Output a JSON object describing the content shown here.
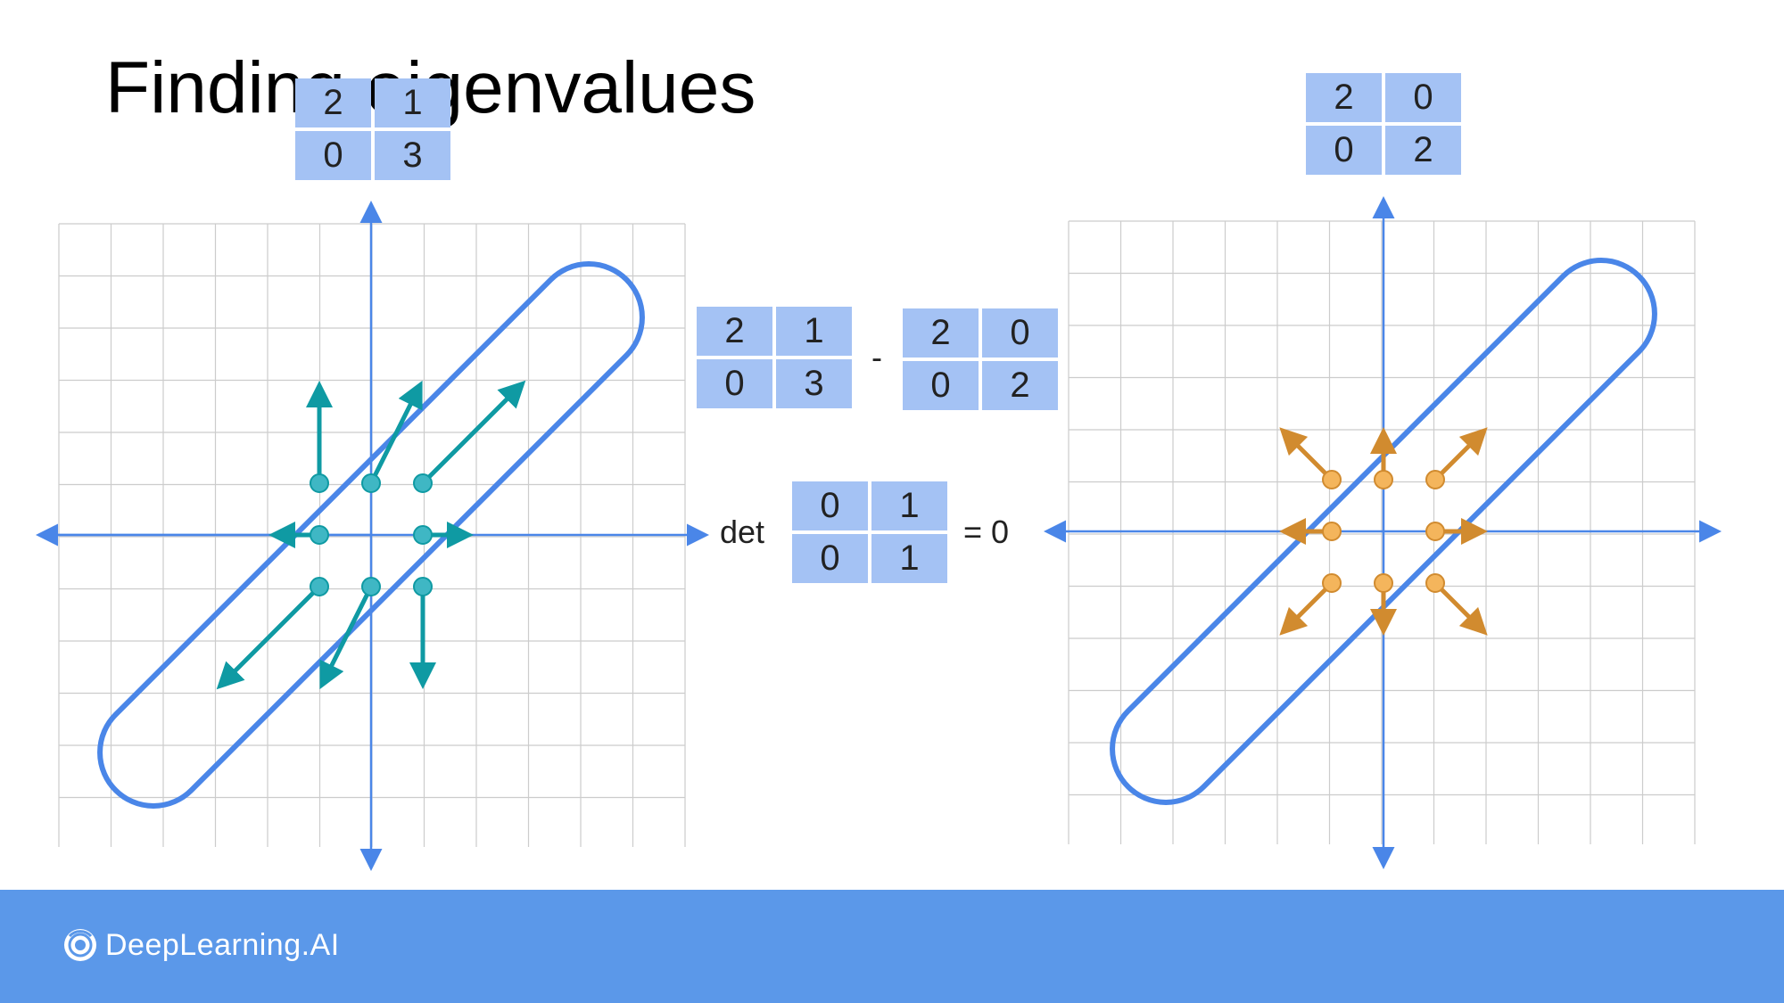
{
  "title": "Finding eigenvalues",
  "matrices": {
    "A_top": {
      "r1": [
        "2",
        "1"
      ],
      "r2": [
        "0",
        "3"
      ]
    },
    "D_top": {
      "r1": [
        "2",
        "0"
      ],
      "r2": [
        "0",
        "2"
      ]
    },
    "A_mid": {
      "r1": [
        "2",
        "1"
      ],
      "r2": [
        "0",
        "3"
      ]
    },
    "D_mid": {
      "r1": [
        "2",
        "0"
      ],
      "r2": [
        "0",
        "2"
      ]
    },
    "det_matrix": {
      "r1": [
        "0",
        "1"
      ],
      "r2": [
        "0",
        "1"
      ]
    }
  },
  "operators": {
    "minus": "-",
    "det": "det",
    "equals_zero": "= 0"
  },
  "colors": {
    "axis": "#4a86e8",
    "grid": "#cccccc",
    "teal": "#0f9aa3",
    "teal_dot": "#3fb7c4",
    "orange": "#d18b2f",
    "orange_dot": "#f4b55c",
    "footer": "#5b98e9",
    "matrix_cell": "#a4c2f4"
  },
  "footer": {
    "logo_text": "DeepLearning.AI",
    "logo_icon": "deeplearning-logo-icon"
  }
}
